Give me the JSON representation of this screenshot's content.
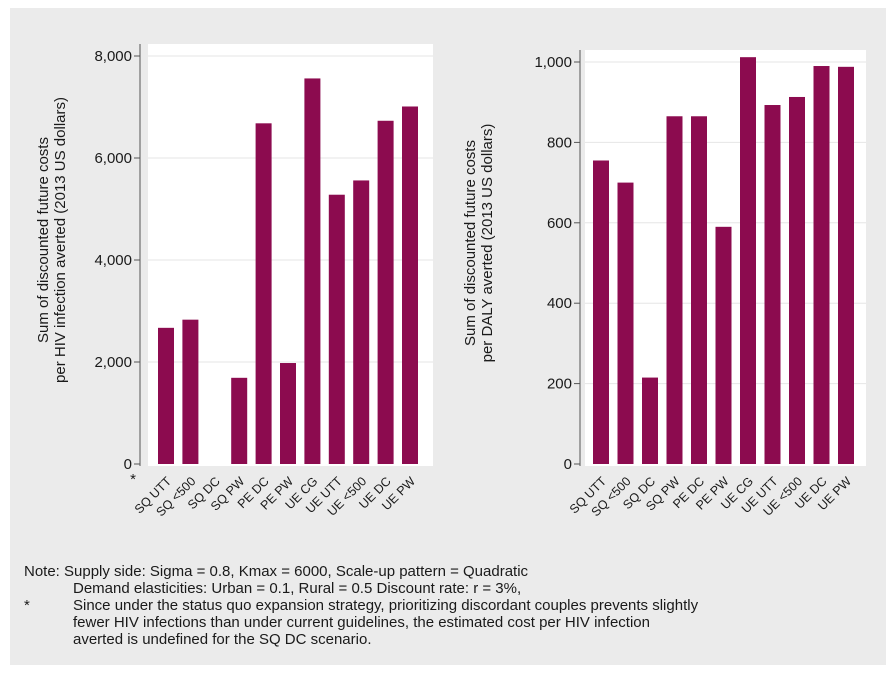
{
  "colors": {
    "bar": "#8c0b4f",
    "plot_background": "#ffffff",
    "figure_background": "#ebebeb",
    "grid": "#e6e6e6",
    "axis": "#555555"
  },
  "chart_data": [
    {
      "type": "bar",
      "ylabel": [
        "Sum of discounted future costs",
        "per HIV infection averted (2013 US dollars)"
      ],
      "ylim": [
        0,
        8000
      ],
      "yticks": [
        0,
        2000,
        4000,
        6000,
        8000
      ],
      "ytick_labels": [
        "0",
        "2,000",
        "4,000",
        "6,000",
        "8,000"
      ],
      "grid": true,
      "categories": [
        "SQ UTT",
        "SQ <500",
        "SQ DC",
        "SQ PW",
        "PE DC",
        "PE PW",
        "UE CG",
        "UE UTT",
        "UE <500",
        "UE DC",
        "UE PW"
      ],
      "values": [
        2670,
        2830,
        null,
        1690,
        6680,
        1980,
        7560,
        5280,
        5560,
        6730,
        7010
      ],
      "annotations": [
        {
          "category": "SQ DC",
          "text": "*"
        }
      ]
    },
    {
      "type": "bar",
      "ylabel": [
        "Sum of discounted future costs",
        "per DALY averted (2013 US dollars)"
      ],
      "ylim": [
        0,
        1000
      ],
      "yticks": [
        0,
        200,
        400,
        600,
        800,
        1000
      ],
      "ytick_labels": [
        "0",
        "200",
        "400",
        "600",
        "800",
        "1,000"
      ],
      "grid": true,
      "categories": [
        "SQ UTT",
        "SQ <500",
        "SQ DC",
        "SQ PW",
        "PE DC",
        "PE PW",
        "UE CG",
        "UE UTT",
        "UE <500",
        "UE DC",
        "UE PW"
      ],
      "values": [
        755,
        700,
        215,
        865,
        865,
        590,
        1012,
        893,
        913,
        990,
        988
      ]
    }
  ],
  "note": {
    "line1": "Note: Supply side: Sigma = 0.8, Kmax = 6000, Scale-up pattern = Quadratic",
    "line2": "Demand elasticities: Urban = 0.1, Rural = 0.5  Discount rate: r = 3%,",
    "star": "*",
    "footnote": [
      "Since under the status quo expansion strategy, prioritizing discordant couples prevents slightly",
      "fewer HIV infections than under current guidelines, the estimated cost per HIV infection",
      "averted is undefined for the SQ DC scenario."
    ]
  }
}
